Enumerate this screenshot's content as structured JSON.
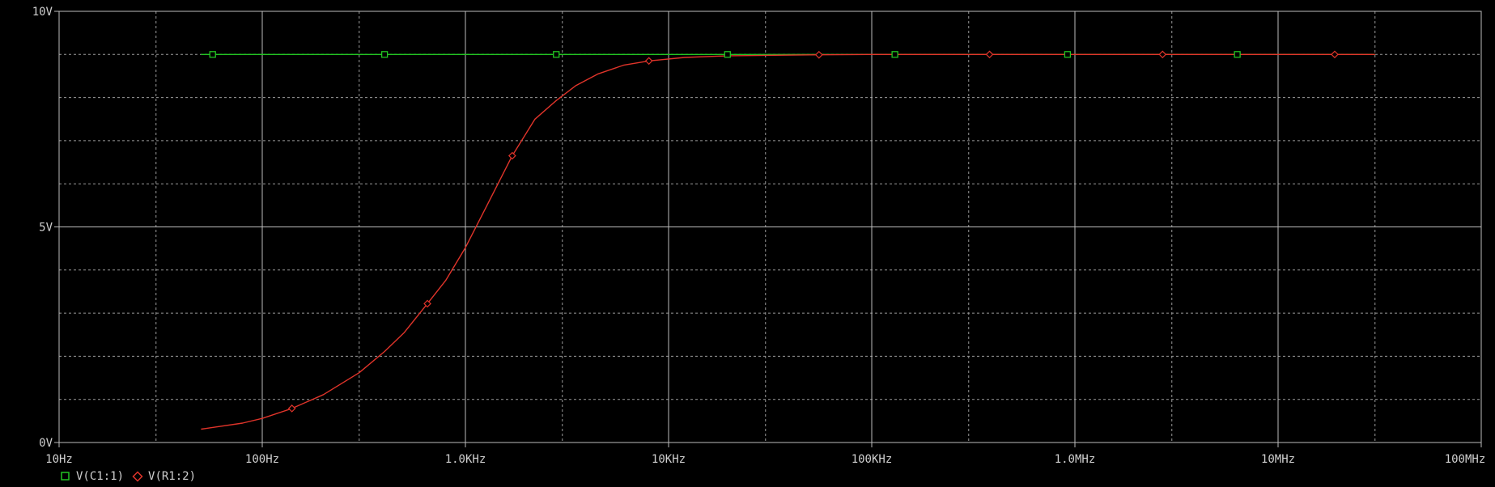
{
  "chart_data": {
    "type": "line",
    "xscale": "log",
    "xlim": [
      10,
      100000000
    ],
    "ylim": [
      0,
      10
    ],
    "grid": true,
    "x_major_ticks": [
      10,
      100,
      1000,
      10000,
      100000,
      1000000,
      10000000,
      100000000
    ],
    "x_tick_labels": [
      "10Hz",
      "100Hz",
      "1.0KHz",
      "10KHz",
      "100KHz",
      "1.0MHz",
      "10MHz",
      "100MHz"
    ],
    "x_minor_ticks": [
      30,
      300,
      3000,
      30000,
      300000,
      3000000,
      30000000
    ],
    "y_major_ticks": [
      0,
      5,
      10
    ],
    "y_tick_labels": [
      "0V",
      "5V",
      "10V"
    ],
    "y_minor_ticks": [
      1,
      2,
      3,
      4,
      6,
      7,
      8,
      9
    ],
    "series": [
      {
        "name": "V(C1:1)",
        "color": "#22c422",
        "marker": "square",
        "x": [
          50,
          57,
          400,
          2800,
          19500,
          130000,
          920000,
          6300000,
          30000000
        ],
        "y": [
          9,
          9,
          9,
          9,
          9,
          9,
          9,
          9,
          9
        ],
        "marker_x": [
          57,
          400,
          2800,
          19500,
          130000,
          920000,
          6300000
        ]
      },
      {
        "name": "V(R1:2)",
        "color": "#e0342a",
        "marker": "diamond",
        "x": [
          50,
          80,
          100,
          140,
          200,
          300,
          400,
          500,
          650,
          800,
          1000,
          1300,
          1700,
          2200,
          2800,
          3500,
          4500,
          6000,
          8000,
          12000,
          20000,
          50000,
          100000,
          1000000,
          10000000,
          30000000
        ],
        "y": [
          0.31,
          0.45,
          0.56,
          0.79,
          1.11,
          1.62,
          2.11,
          2.55,
          3.22,
          3.76,
          4.52,
          5.57,
          6.65,
          7.5,
          7.93,
          8.28,
          8.55,
          8.75,
          8.85,
          8.93,
          8.97,
          8.99,
          9.0,
          9.0,
          9.0,
          9.0
        ],
        "marker_x": [
          140,
          650,
          1700,
          8000,
          55000,
          380000,
          2700000,
          19000000
        ]
      }
    ]
  }
}
